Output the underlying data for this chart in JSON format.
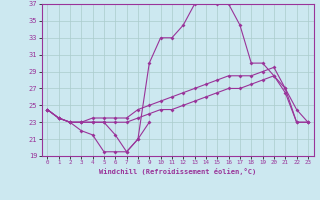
{
  "xlabel": "Windchill (Refroidissement éolien,°C)",
  "background_color": "#cce8f0",
  "grid_color": "#aacccc",
  "line_color": "#993399",
  "x": [
    0,
    1,
    2,
    3,
    4,
    5,
    6,
    7,
    8,
    9,
    10,
    11,
    12,
    13,
    14,
    15,
    16,
    17,
    18,
    19,
    20,
    21,
    22,
    23
  ],
  "line_main": [
    24.5,
    23.5,
    23.0,
    23.0,
    23.0,
    23.0,
    21.5,
    19.5,
    21.0,
    30.0,
    33.0,
    33.0,
    34.5,
    37.0,
    37.5,
    37.0,
    37.0,
    34.5,
    30.0,
    30.0,
    28.5,
    27.0,
    24.5,
    23.0
  ],
  "line_upper": [
    24.5,
    23.5,
    23.0,
    23.0,
    23.5,
    23.5,
    23.5,
    23.5,
    24.5,
    25.0,
    25.5,
    26.0,
    26.5,
    27.0,
    27.5,
    28.0,
    28.5,
    28.5,
    28.5,
    29.0,
    29.5,
    27.0,
    23.0,
    23.0
  ],
  "line_lower": [
    24.5,
    23.5,
    23.0,
    23.0,
    23.0,
    23.0,
    23.0,
    23.0,
    23.5,
    24.0,
    24.5,
    24.5,
    25.0,
    25.5,
    26.0,
    26.5,
    27.0,
    27.0,
    27.5,
    28.0,
    28.5,
    26.5,
    23.0,
    23.0
  ],
  "line_bottom": [
    24.5,
    23.5,
    23.0,
    22.0,
    21.5,
    19.5,
    19.5,
    19.5,
    21.0,
    23.0,
    null,
    null,
    null,
    null,
    null,
    null,
    null,
    null,
    null,
    null,
    null,
    null,
    null,
    null
  ],
  "ylim": [
    19,
    37
  ],
  "xlim_min": -0.5,
  "xlim_max": 23.5,
  "yticks": [
    19,
    21,
    23,
    25,
    27,
    29,
    31,
    33,
    35,
    37
  ],
  "xticks": [
    0,
    1,
    2,
    3,
    4,
    5,
    6,
    7,
    8,
    9,
    10,
    11,
    12,
    13,
    14,
    15,
    16,
    17,
    18,
    19,
    20,
    21,
    22,
    23
  ]
}
